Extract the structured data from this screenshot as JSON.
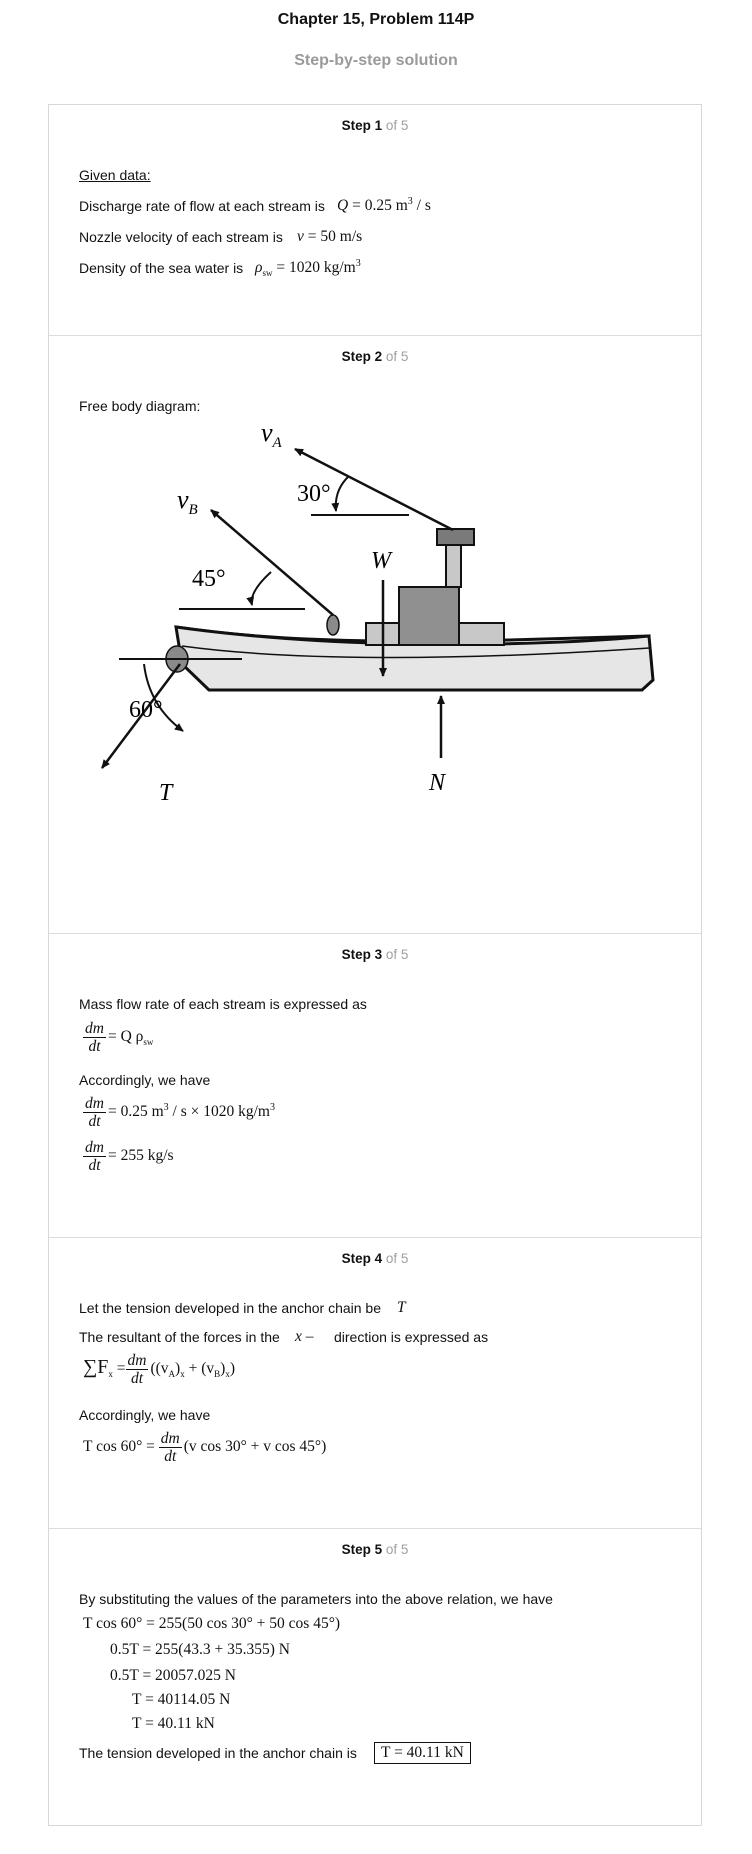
{
  "header": {
    "title": "Chapter 15, Problem 114P",
    "subtitle": "Step-by-step solution"
  },
  "step_label": {
    "word": "Step",
    "total": "of 5"
  },
  "steps": [
    {
      "number": "1",
      "heading": "Given data:",
      "lines": [
        "Discharge rate of flow at each stream is",
        "Nozzle velocity of each stream is",
        "Density of the sea water is"
      ],
      "values": {
        "Q": "Q",
        "Q_val": "= 0.25 m",
        "Q_exp": "3",
        "Q_unit": " / s",
        "v": "v",
        "v_val": "= 50 m/s",
        "rho": "ρ",
        "rho_sub": "sw",
        "rho_val": "= 1020 kg/m",
        "rho_exp": "3"
      }
    },
    {
      "number": "2",
      "text": "Free body diagram:",
      "diagram": {
        "vA": "v",
        "vA_sub": "A",
        "vB": "v",
        "vB_sub": "B",
        "angle_A": "30°",
        "angle_B": "45°",
        "angle_T": "60°",
        "W": "W",
        "N": "N",
        "T": "T"
      }
    },
    {
      "number": "3",
      "lines": [
        "Mass flow rate of each stream is expressed as",
        "Accordingly, we have"
      ],
      "frac_num": "dm",
      "frac_den": "dt",
      "eq1": "= Q ρ",
      "eq1_sub": "sw",
      "eq2a": "= 0.25 m",
      "eq2_exp1": "3",
      "eq2b": " / s × 1020 kg/m",
      "eq2_exp2": "3",
      "eq3": "= 255 kg/s"
    },
    {
      "number": "4",
      "line1": "Let the tension developed in the anchor chain be",
      "line1_sym": "T",
      "line2a": "The resultant of the forces in the",
      "line2_sym": "x",
      "line2b": "direction is expressed as",
      "line3": "Accordingly, we have",
      "sumF": "∑F",
      "sumF_sub": "x",
      "sum_rhs": "((v",
      "vA_sub": "A",
      "close1": ")",
      "x_sub1": "x",
      "plus": " + (v",
      "vB_sub": "B",
      "close2": ")",
      "x_sub2": "x",
      "end": ")",
      "eq_lhs": "T cos 60° =",
      "eq_rhs": "(v cos 30° + v cos 45°)"
    },
    {
      "number": "5",
      "line1": "By substituting the values of the parameters into the above relation, we have",
      "equations": [
        "T cos 60° = 255(50 cos 30° + 50 cos 45°)",
        "0.5T = 255(43.3 + 35.355) N",
        "0.5T = 20057.025 N",
        "T = 40114.05 N",
        "T = 40.11 kN"
      ],
      "final_text": "The tension developed in the anchor chain is",
      "final_answer": "T = 40.11 kN"
    }
  ]
}
